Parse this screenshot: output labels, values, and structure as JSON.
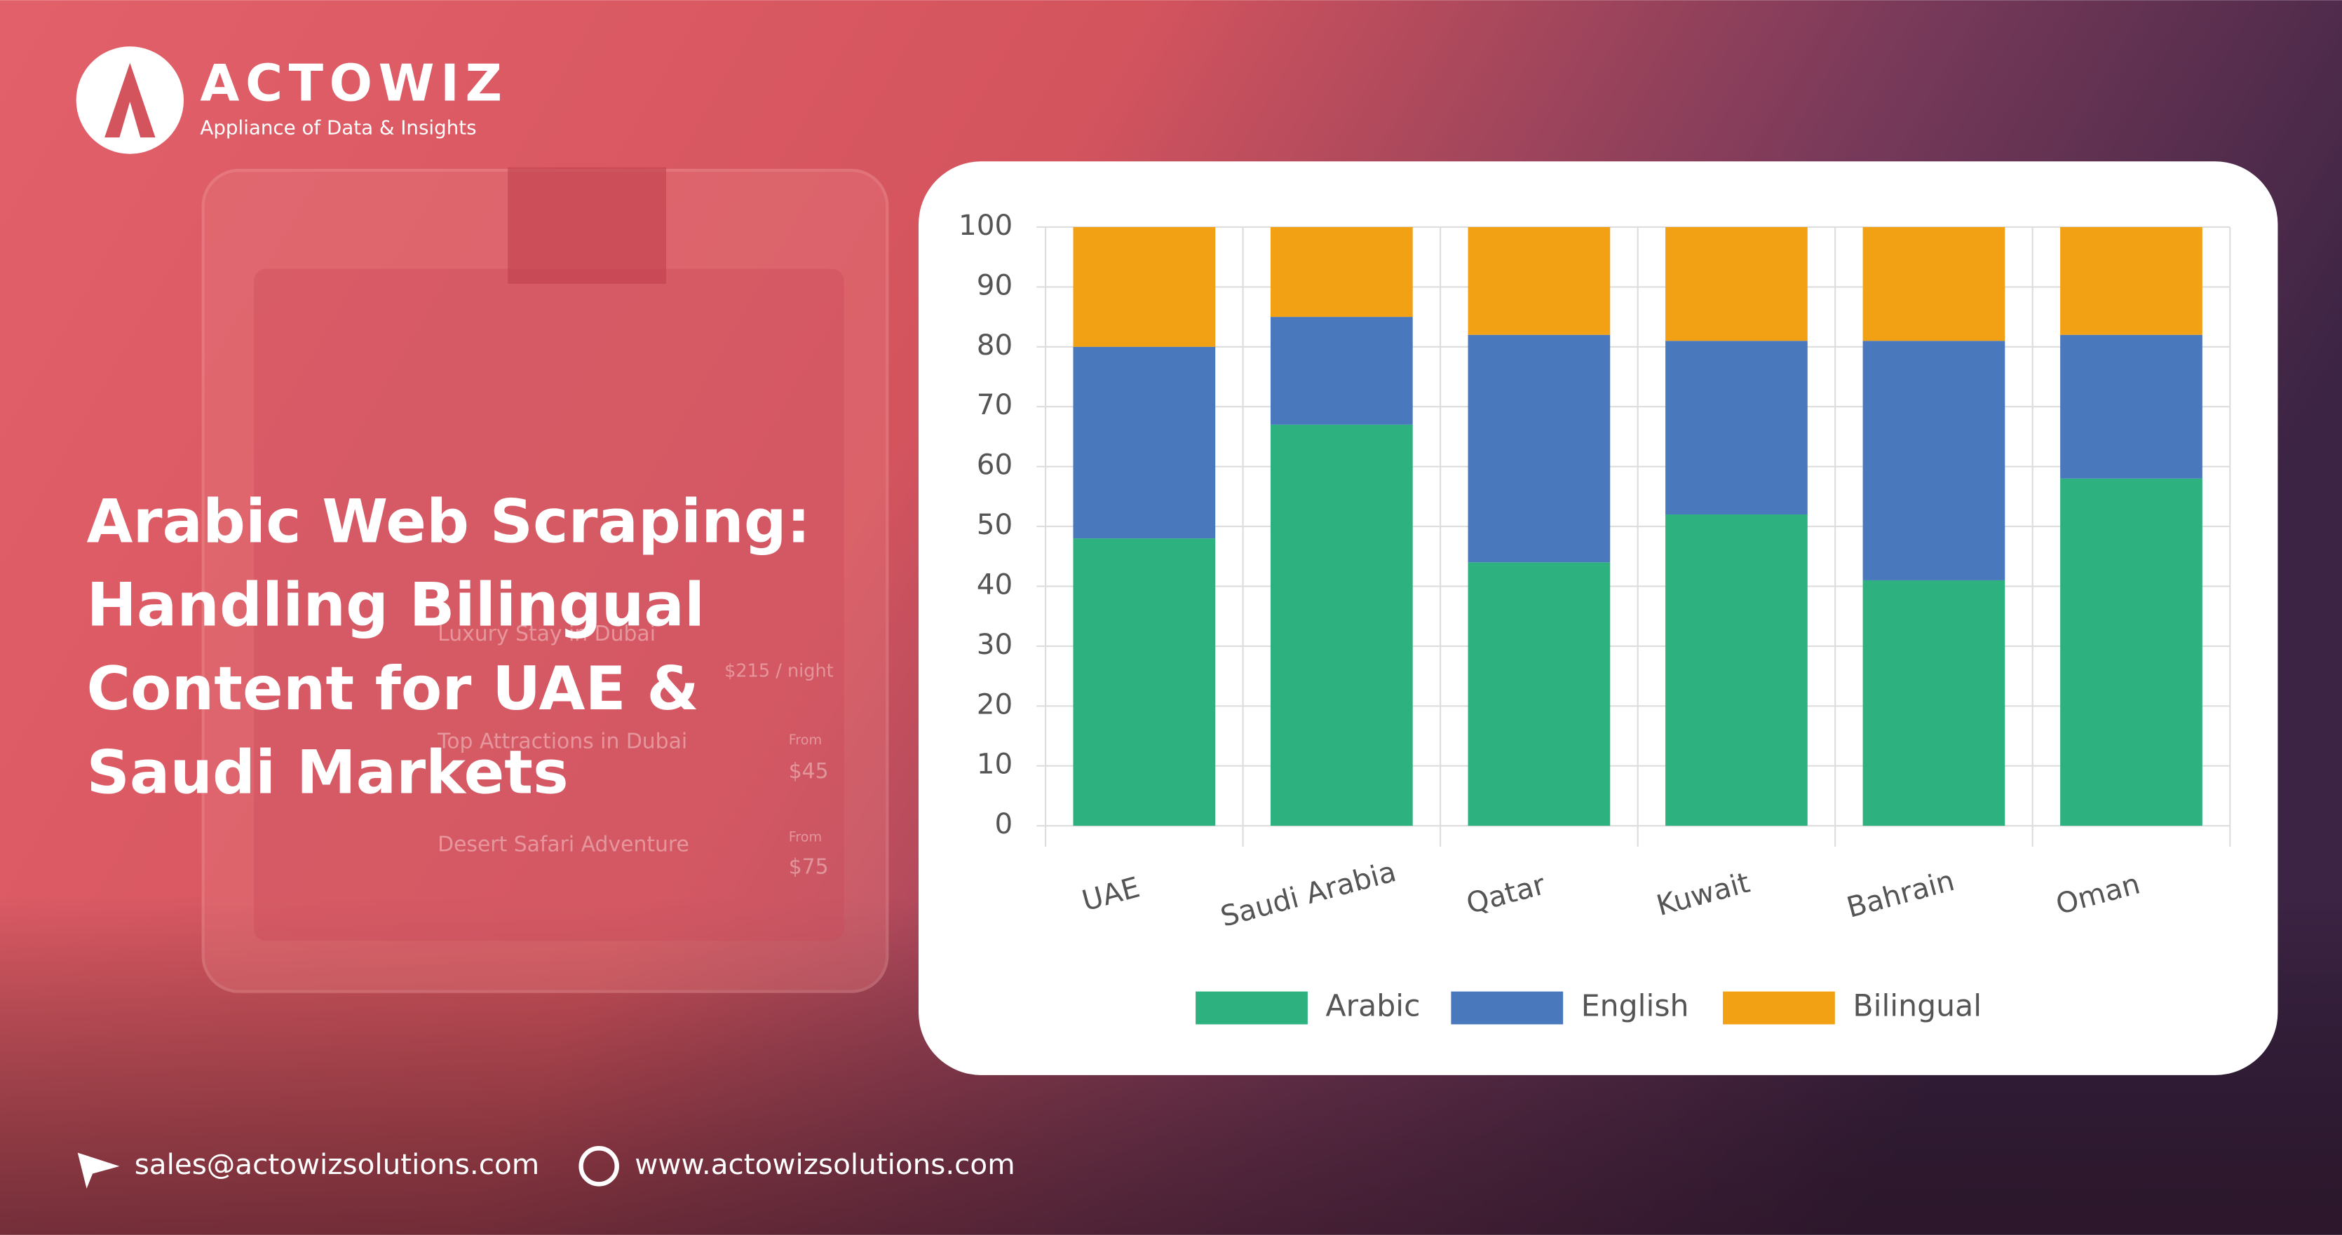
{
  "brand": {
    "name": "ACTOWIZ",
    "tagline": "Appliance of Data & Insights"
  },
  "headline": [
    "Arabic Web Scraping:",
    "Handling Bilingual",
    "Content for UAE &",
    "Saudi Markets"
  ],
  "background_card": {
    "items": [
      "Luxury Stay in Dubai",
      "Top Attractions in Dubai",
      "Desert Safari Adventure"
    ],
    "prices": [
      "$215 / night",
      "From",
      "$45",
      "From",
      "$75"
    ]
  },
  "contact": {
    "email": "sales@actowizsolutions.com",
    "website": "www.actowizsolutions.com"
  },
  "chart_data": {
    "type": "bar",
    "stacked": true,
    "categories": [
      "UAE",
      "Saudi Arabia",
      "Qatar",
      "Kuwait",
      "Bahrain",
      "Oman"
    ],
    "series": [
      {
        "name": "Arabic",
        "color": "#2db17e",
        "values": [
          48,
          67,
          44,
          52,
          41,
          58
        ]
      },
      {
        "name": "English",
        "color": "#4a78bd",
        "values": [
          32,
          18,
          38,
          29,
          40,
          24
        ]
      },
      {
        "name": "Bilingual",
        "color": "#f2a115",
        "values": [
          20,
          15,
          18,
          19,
          19,
          18
        ]
      }
    ],
    "ylim": [
      0,
      100
    ],
    "yticks": [
      0,
      10,
      20,
      30,
      40,
      50,
      60,
      70,
      80,
      90,
      100
    ],
    "grid": true,
    "legend": "bottom"
  }
}
